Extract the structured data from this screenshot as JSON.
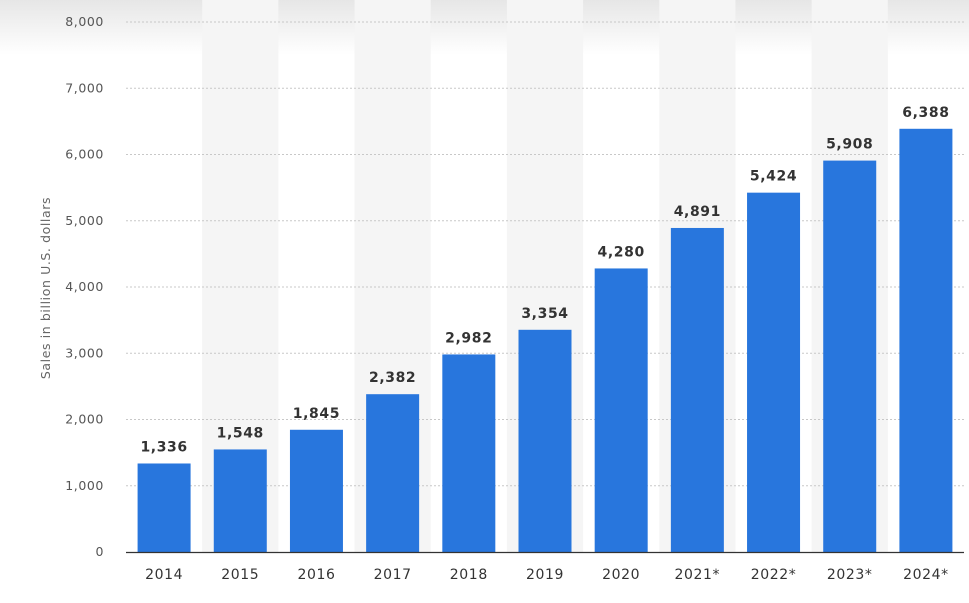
{
  "chart_data": {
    "type": "bar",
    "categories": [
      "2014",
      "2015",
      "2016",
      "2017",
      "2018",
      "2019",
      "2020",
      "2021*",
      "2022*",
      "2023*",
      "2024*"
    ],
    "values": [
      1336,
      1548,
      1845,
      2382,
      2982,
      3354,
      4280,
      4891,
      5424,
      5908,
      6388
    ],
    "data_labels": [
      "1,336",
      "1,548",
      "1,845",
      "2,382",
      "2,982",
      "3,354",
      "4,280",
      "4,891",
      "5,424",
      "5,908",
      "6,388"
    ],
    "ylabel": "Sales in billion U.S. dollars",
    "ylim": [
      0,
      8000
    ],
    "yticks": [
      0,
      1000,
      2000,
      3000,
      4000,
      5000,
      6000,
      7000,
      8000
    ],
    "ytick_labels": [
      "0",
      "1,000",
      "2,000",
      "3,000",
      "4,000",
      "5,000",
      "6,000",
      "7,000",
      "8,000"
    ],
    "grid": true,
    "colors": {
      "bar": "#2876dd",
      "band": "#f5f5f5",
      "grid": "#c8c8c8",
      "axis": "#333333"
    }
  }
}
